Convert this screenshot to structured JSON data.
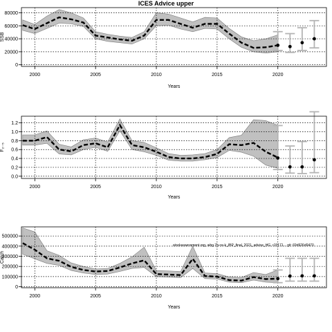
{
  "page": {
    "title": "ICES Advice upper",
    "watermark": "stockassessment.org, whg.7b-ce-k_IBP_final_2021_advice_HG, r15171... git: 69d926d0470"
  },
  "colors": {
    "band": "#c0c0c0",
    "line": "#000000",
    "forecast_ci": "#b4b4b4",
    "grid": "#000000"
  },
  "chart_data": [
    {
      "type": "line",
      "title": "ICES Advice upper",
      "xlabel": "Years",
      "ylabel": "SSB",
      "xlim": [
        1998.9,
        2024
      ],
      "ylim": [
        -2500,
        88000
      ],
      "x_ticks": [
        2000,
        2005,
        2010,
        2015,
        2020
      ],
      "y_ticks": [
        0,
        20000,
        40000,
        60000,
        80000
      ],
      "y_tick_labels": [
        "0",
        "20000",
        "40000",
        "60000",
        "80000"
      ],
      "grid": true,
      "years": [
        1999,
        2000,
        2001,
        2002,
        2003,
        2004,
        2005,
        2006,
        2007,
        2008,
        2009,
        2010,
        2011,
        2012,
        2013,
        2014,
        2015,
        2016,
        2017,
        2018,
        2019,
        2020
      ],
      "estimate": [
        61000,
        55000,
        64000,
        73000,
        70000,
        65000,
        45000,
        42000,
        39000,
        37000,
        45000,
        69000,
        69000,
        63000,
        57000,
        63000,
        63000,
        48000,
        34000,
        26000,
        27000,
        30000
      ],
      "lower": [
        53000,
        48000,
        56000,
        64000,
        63000,
        59000,
        40000,
        36000,
        34000,
        32000,
        40000,
        60000,
        61000,
        55000,
        51000,
        56000,
        55000,
        40000,
        27000,
        20000,
        18000,
        20000
      ],
      "upper": [
        69000,
        62000,
        75000,
        85000,
        80000,
        72000,
        51000,
        47000,
        44000,
        42000,
        51000,
        80000,
        78000,
        72000,
        66000,
        73000,
        72000,
        56000,
        43000,
        37000,
        40000,
        46000
      ],
      "forecast": [
        {
          "x": 2020,
          "y": 30000,
          "lower": 22000,
          "upper": 51000
        },
        {
          "x": 2021,
          "y": 28000,
          "lower": 19000,
          "upper": 48000
        },
        {
          "x": 2022,
          "y": 34000,
          "lower": 22000,
          "upper": 57000
        },
        {
          "x": 2023,
          "y": 40000,
          "lower": 26000,
          "upper": 68000
        }
      ]
    },
    {
      "type": "line",
      "title": "",
      "xlabel": "Years",
      "ylabel": "F₂₋₅",
      "xlim": [
        1998.9,
        2024
      ],
      "ylim": [
        -0.05,
        1.35
      ],
      "x_ticks": [
        2000,
        2005,
        2010,
        2015,
        2020
      ],
      "y_ticks": [
        0,
        0.2,
        0.4,
        0.6,
        0.8,
        1.0,
        1.2
      ],
      "y_tick_labels": [
        "0.0",
        "0.2",
        "0.4",
        "0.6",
        "0.8",
        "1.0",
        "1.2"
      ],
      "grid": true,
      "years": [
        1999,
        2000,
        2001,
        2002,
        2003,
        2004,
        2005,
        2006,
        2007,
        2008,
        2009,
        2010,
        2011,
        2012,
        2013,
        2014,
        2015,
        2016,
        2017,
        2018,
        2019,
        2020
      ],
      "estimate": [
        0.8,
        0.8,
        0.88,
        0.6,
        0.56,
        0.7,
        0.74,
        0.65,
        1.15,
        0.7,
        0.65,
        0.55,
        0.43,
        0.4,
        0.4,
        0.43,
        0.5,
        0.72,
        0.7,
        0.75,
        0.55,
        0.42
      ],
      "lower": [
        0.7,
        0.7,
        0.74,
        0.5,
        0.48,
        0.6,
        0.65,
        0.56,
        1.02,
        0.6,
        0.55,
        0.47,
        0.36,
        0.34,
        0.34,
        0.37,
        0.42,
        0.58,
        0.54,
        0.45,
        0.25,
        0.18
      ],
      "upper": [
        0.93,
        0.93,
        1.02,
        0.72,
        0.66,
        0.82,
        0.86,
        0.77,
        1.29,
        0.8,
        0.76,
        0.64,
        0.51,
        0.47,
        0.48,
        0.51,
        0.6,
        0.87,
        0.92,
        1.27,
        1.25,
        1.15
      ],
      "forecast": [
        {
          "x": 2020,
          "y": 0.41,
          "lower": 0.15,
          "upper": 1.14
        },
        {
          "x": 2021,
          "y": 0.21,
          "lower": 0.07,
          "upper": 0.68
        },
        {
          "x": 2022,
          "y": 0.21,
          "lower": 0.06,
          "upper": 0.78
        },
        {
          "x": 2023,
          "y": 0.37,
          "lower": 0.08,
          "upper": 1.45
        }
      ]
    },
    {
      "type": "line",
      "title": "",
      "xlabel": "Years",
      "ylabel": "Catch",
      "xlim": [
        1998.9,
        2024
      ],
      "ylim": [
        -10000,
        590000
      ],
      "x_ticks": [
        2000,
        2005,
        2010,
        2015,
        2020
      ],
      "y_ticks": [
        0,
        100000,
        200000,
        300000,
        400000,
        500000
      ],
      "y_tick_labels": [
        "0",
        "100000",
        "200000",
        "300000",
        "400000",
        "500000"
      ],
      "grid": true,
      "years": [
        1999,
        2000,
        2001,
        2002,
        2003,
        2004,
        2005,
        2006,
        2007,
        2008,
        2009,
        2010,
        2011,
        2012,
        2013,
        2014,
        2015,
        2016,
        2017,
        2018,
        2019,
        2020
      ],
      "estimate": [
        430000,
        365000,
        280000,
        255000,
        195000,
        165000,
        150000,
        155000,
        190000,
        230000,
        260000,
        125000,
        120000,
        115000,
        275000,
        105000,
        100000,
        65000,
        60000,
        95000,
        75000,
        80000
      ],
      "lower": [
        320000,
        275000,
        230000,
        210000,
        160000,
        135000,
        120000,
        125000,
        150000,
        180000,
        190000,
        100000,
        95000,
        90000,
        180000,
        80000,
        75000,
        45000,
        40000,
        65000,
        45000,
        40000
      ],
      "upper": [
        580000,
        540000,
        355000,
        310000,
        235000,
        200000,
        175000,
        180000,
        230000,
        295000,
        390000,
        160000,
        155000,
        150000,
        400000,
        135000,
        130000,
        95000,
        90000,
        140000,
        120000,
        165000
      ],
      "forecast": [
        {
          "x": 2020,
          "y": 80000,
          "lower": 40000,
          "upper": 165000
        },
        {
          "x": 2021,
          "y": 105000,
          "lower": 55000,
          "upper": 280000
        },
        {
          "x": 2022,
          "y": 107000,
          "lower": 55000,
          "upper": 280000
        },
        {
          "x": 2023,
          "y": 107000,
          "lower": 55000,
          "upper": 280000
        }
      ]
    }
  ]
}
